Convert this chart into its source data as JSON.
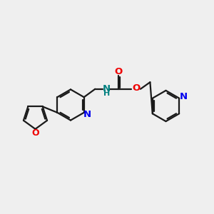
{
  "bg_color": "#efefef",
  "bond_color": "#1a1a1a",
  "N_color": "#0000ee",
  "O_color": "#ee0000",
  "NH_color": "#008080",
  "lw": 1.6,
  "figsize": [
    3.0,
    3.0
  ],
  "dpi": 100,
  "xlim": [
    0,
    10
  ],
  "ylim": [
    0,
    10
  ]
}
